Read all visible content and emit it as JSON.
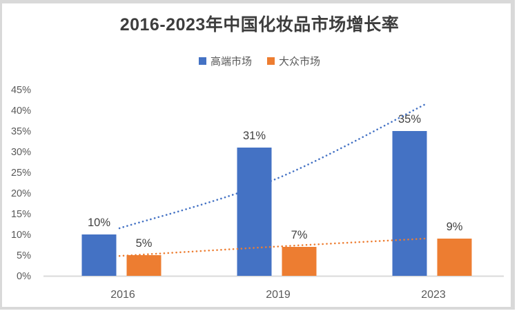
{
  "title": "2016-2023年中国化妆品市场增长率",
  "legend": [
    {
      "id": "premium",
      "label": "高端市场",
      "color": "#4472C4"
    },
    {
      "id": "mass",
      "label": "大众市场",
      "color": "#ED7D31"
    }
  ],
  "chart_data": {
    "type": "bar",
    "title": "2016-2023年中国化妆品市场增长率",
    "categories": [
      "2016",
      "2019",
      "2023"
    ],
    "series": [
      {
        "id": "premium",
        "name": "高端市场",
        "color": "#4472C4",
        "values": [
          10,
          31,
          35
        ],
        "data_labels": [
          "10%",
          "31%",
          "35%"
        ]
      },
      {
        "id": "mass",
        "name": "大众市场",
        "color": "#ED7D31",
        "values": [
          5,
          7,
          9
        ],
        "data_labels": [
          "5%",
          "7%",
          "9%"
        ]
      }
    ],
    "ylim": [
      0,
      45
    ],
    "ytick_step": 5,
    "ytick_labels": [
      "0%",
      "5%",
      "10%",
      "15%",
      "20%",
      "25%",
      "30%",
      "35%",
      "40%",
      "45%"
    ],
    "grid": false,
    "legend_position": "top",
    "trendlines": [
      {
        "series_id": "premium",
        "color": "#4472C4",
        "style": "dotted",
        "points": [
          {
            "xf": 0.165,
            "pct": 11.5
          },
          {
            "xf": 0.496,
            "pct": 23.0
          },
          {
            "xf": 0.83,
            "pct": 41.5
          }
        ]
      },
      {
        "series_id": "mass",
        "color": "#ED7D31",
        "style": "dotted",
        "points": [
          {
            "xf": 0.165,
            "pct": 4.8
          },
          {
            "xf": 0.496,
            "pct": 7.0
          },
          {
            "xf": 0.83,
            "pct": 9.0
          }
        ]
      }
    ],
    "colors": {
      "axis_line": "#d9d9d9",
      "tick_label": "#595959",
      "category_label": "#595959",
      "data_label": "#404040",
      "title": "#3d3d3d",
      "frame_border": "#d9d9d9"
    }
  }
}
